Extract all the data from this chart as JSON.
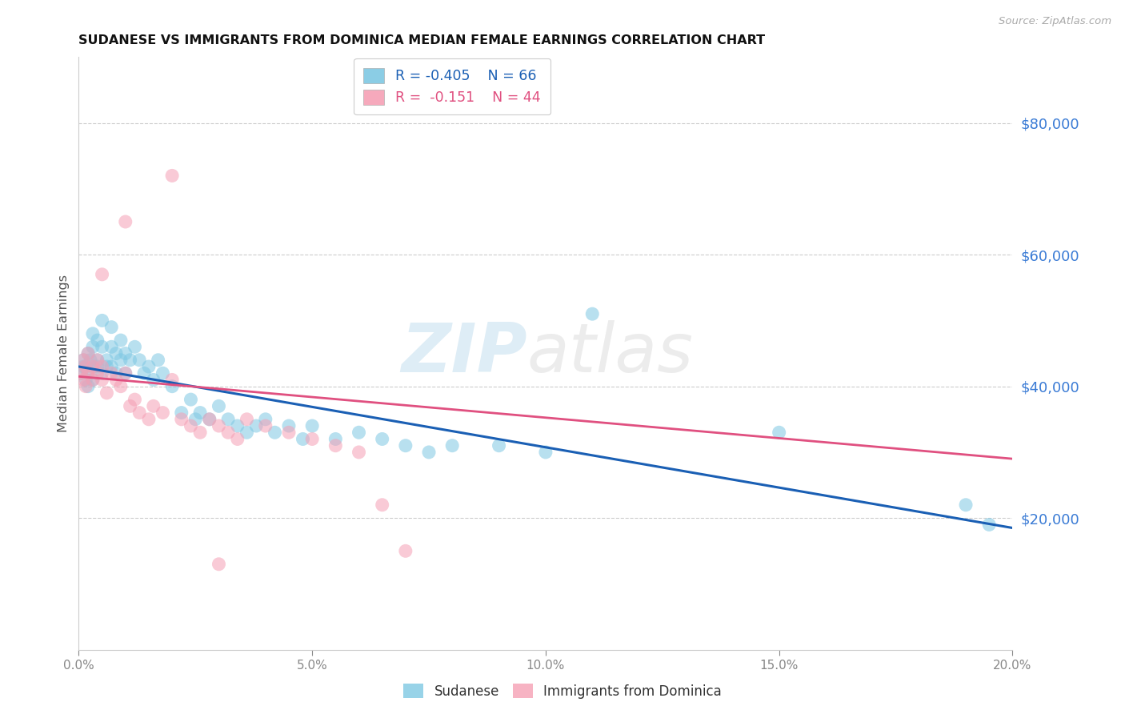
{
  "title": "SUDANESE VS IMMIGRANTS FROM DOMINICA MEDIAN FEMALE EARNINGS CORRELATION CHART",
  "source": "Source: ZipAtlas.com",
  "ylabel": "Median Female Earnings",
  "xlim": [
    0.0,
    0.2
  ],
  "ylim": [
    0,
    90000
  ],
  "xticks": [
    0.0,
    0.05,
    0.1,
    0.15,
    0.2
  ],
  "xticklabels": [
    "0.0%",
    "5.0%",
    "10.0%",
    "15.0%",
    "20.0%"
  ],
  "yticks_right": [
    20000,
    40000,
    60000,
    80000
  ],
  "ytick_labels_right": [
    "$20,000",
    "$40,000",
    "$60,000",
    "$80,000"
  ],
  "color_blue": "#7ec8e3",
  "color_pink": "#f5a0b5",
  "trendline_blue": "#1a5fb4",
  "trendline_pink": "#e05080",
  "legend_label1": "Sudanese",
  "legend_label2": "Immigrants from Dominica",
  "watermark_zip": "ZIP",
  "watermark_atlas": "atlas",
  "blue_trend_x0": 0.0,
  "blue_trend_y0": 43000,
  "blue_trend_x1": 0.2,
  "blue_trend_y1": 18500,
  "pink_trend_x0": 0.0,
  "pink_trend_y0": 41500,
  "pink_trend_x1": 0.2,
  "pink_trend_y1": 29000,
  "blue_x": [
    0.0005,
    0.001,
    0.001,
    0.0015,
    0.0015,
    0.002,
    0.002,
    0.002,
    0.0025,
    0.003,
    0.003,
    0.003,
    0.003,
    0.004,
    0.004,
    0.004,
    0.005,
    0.005,
    0.005,
    0.006,
    0.006,
    0.007,
    0.007,
    0.007,
    0.008,
    0.008,
    0.009,
    0.009,
    0.01,
    0.01,
    0.011,
    0.012,
    0.013,
    0.014,
    0.015,
    0.016,
    0.017,
    0.018,
    0.02,
    0.022,
    0.024,
    0.025,
    0.026,
    0.028,
    0.03,
    0.032,
    0.034,
    0.036,
    0.038,
    0.04,
    0.042,
    0.045,
    0.048,
    0.05,
    0.055,
    0.06,
    0.065,
    0.07,
    0.075,
    0.08,
    0.09,
    0.1,
    0.11,
    0.15,
    0.19,
    0.195
  ],
  "blue_y": [
    42000,
    43000,
    44000,
    43000,
    41000,
    42000,
    40000,
    45000,
    44000,
    43000,
    46000,
    48000,
    41000,
    47000,
    44000,
    43000,
    50000,
    46000,
    42000,
    44000,
    43000,
    49000,
    46000,
    43000,
    45000,
    42000,
    47000,
    44000,
    45000,
    42000,
    44000,
    46000,
    44000,
    42000,
    43000,
    41000,
    44000,
    42000,
    40000,
    36000,
    38000,
    35000,
    36000,
    35000,
    37000,
    35000,
    34000,
    33000,
    34000,
    35000,
    33000,
    34000,
    32000,
    34000,
    32000,
    33000,
    32000,
    31000,
    30000,
    31000,
    31000,
    30000,
    51000,
    33000,
    22000,
    19000
  ],
  "pink_x": [
    0.0005,
    0.001,
    0.001,
    0.0015,
    0.0015,
    0.002,
    0.002,
    0.003,
    0.003,
    0.004,
    0.004,
    0.005,
    0.005,
    0.006,
    0.007,
    0.008,
    0.009,
    0.01,
    0.011,
    0.012,
    0.013,
    0.015,
    0.016,
    0.018,
    0.02,
    0.022,
    0.024,
    0.026,
    0.028,
    0.03,
    0.032,
    0.034,
    0.036,
    0.04,
    0.045,
    0.05,
    0.055,
    0.06,
    0.065,
    0.07,
    0.005,
    0.01,
    0.02,
    0.03
  ],
  "pink_y": [
    42000,
    44000,
    41000,
    43000,
    40000,
    42000,
    45000,
    43000,
    41000,
    44000,
    42000,
    43000,
    41000,
    39000,
    42000,
    41000,
    40000,
    42000,
    37000,
    38000,
    36000,
    35000,
    37000,
    36000,
    41000,
    35000,
    34000,
    33000,
    35000,
    34000,
    33000,
    32000,
    35000,
    34000,
    33000,
    32000,
    31000,
    30000,
    22000,
    15000,
    57000,
    65000,
    72000,
    13000
  ]
}
